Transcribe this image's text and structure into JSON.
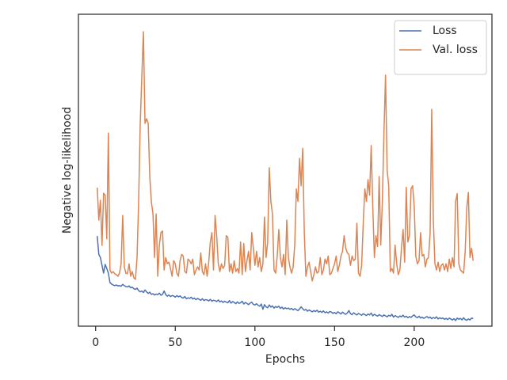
{
  "chart_data": {
    "type": "line",
    "xlabel": "Epochs",
    "ylabel": "Negative log-likelihood",
    "xlim": [
      -10.8,
      248.8
    ],
    "xticks": [
      0,
      50,
      100,
      150,
      200
    ],
    "ylim": [
      0,
      100
    ],
    "legend": "upper right",
    "grid": false,
    "x": [
      1,
      2,
      3,
      4,
      5,
      6,
      7,
      8,
      9,
      10,
      11,
      12,
      13,
      14,
      15,
      16,
      17,
      18,
      19,
      20,
      21,
      22,
      23,
      24,
      25,
      26,
      27,
      28,
      29,
      30,
      31,
      32,
      33,
      34,
      35,
      36,
      37,
      38,
      39,
      40,
      41,
      42,
      43,
      44,
      45,
      46,
      47,
      48,
      49,
      50,
      51,
      52,
      53,
      54,
      55,
      56,
      57,
      58,
      59,
      60,
      61,
      62,
      63,
      64,
      65,
      66,
      67,
      68,
      69,
      70,
      71,
      72,
      73,
      74,
      75,
      76,
      77,
      78,
      79,
      80,
      81,
      82,
      83,
      84,
      85,
      86,
      87,
      88,
      89,
      90,
      91,
      92,
      93,
      94,
      95,
      96,
      97,
      98,
      99,
      100,
      101,
      102,
      103,
      104,
      105,
      106,
      107,
      108,
      109,
      110,
      111,
      112,
      113,
      114,
      115,
      116,
      117,
      118,
      119,
      120,
      121,
      122,
      123,
      124,
      125,
      126,
      127,
      128,
      129,
      130,
      131,
      132,
      133,
      134,
      135,
      136,
      137,
      138,
      139,
      140,
      141,
      142,
      143,
      144,
      145,
      146,
      147,
      148,
      149,
      150,
      151,
      152,
      153,
      154,
      155,
      156,
      157,
      158,
      159,
      160,
      161,
      162,
      163,
      164,
      165,
      166,
      167,
      168,
      169,
      170,
      171,
      172,
      173,
      174,
      175,
      176,
      177,
      178,
      179,
      180,
      181,
      182,
      183,
      184,
      185,
      186,
      187,
      188,
      189,
      190,
      191,
      192,
      193,
      194,
      195,
      196,
      197,
      198,
      199,
      200,
      201,
      202,
      203,
      204,
      205,
      206,
      207,
      208,
      209,
      210,
      211,
      212,
      213,
      214,
      215,
      216,
      217,
      218,
      219,
      220,
      221,
      222,
      223,
      224,
      225,
      226,
      227,
      228,
      229,
      230,
      231,
      232,
      233,
      234,
      235,
      236,
      237
    ],
    "series": [
      {
        "name": "Loss",
        "color": "#4c72b0",
        "values": [
          28.9,
          23.0,
          22.0,
          19.5,
          17.0,
          19.8,
          18.5,
          17.0,
          14.0,
          13.5,
          13.2,
          13.0,
          13.2,
          12.9,
          13.0,
          12.8,
          13.4,
          13.0,
          12.7,
          12.6,
          12.9,
          12.3,
          12.5,
          12.0,
          11.8,
          12.2,
          11.4,
          11.0,
          11.3,
          10.8,
          11.6,
          11.0,
          10.5,
          10.9,
          10.2,
          10.4,
          10.0,
          10.3,
          10.1,
          10.6,
          9.9,
          10.2,
          11.3,
          10.1,
          9.6,
          10.0,
          9.5,
          9.8,
          9.7,
          9.3,
          9.8,
          9.4,
          9.7,
          9.2,
          9.0,
          9.5,
          8.8,
          9.1,
          8.9,
          9.3,
          8.7,
          9.0,
          8.5,
          8.9,
          8.6,
          8.3,
          8.8,
          8.2,
          8.5,
          8.4,
          8.1,
          8.6,
          8.0,
          8.3,
          8.2,
          7.9,
          8.4,
          7.8,
          8.1,
          7.6,
          8.0,
          7.7,
          7.5,
          8.2,
          7.4,
          7.9,
          7.6,
          7.2,
          7.8,
          7.3,
          7.5,
          8.0,
          7.1,
          7.6,
          7.3,
          6.9,
          7.4,
          7.7,
          7.0,
          6.8,
          7.2,
          6.7,
          6.4,
          7.1,
          5.4,
          6.9,
          6.2,
          5.9,
          6.8,
          6.1,
          6.5,
          5.8,
          6.3,
          6.0,
          6.4,
          5.7,
          6.1,
          5.5,
          5.9,
          5.6,
          5.8,
          5.4,
          5.7,
          5.2,
          5.6,
          5.3,
          5.0,
          5.5,
          6.2,
          5.6,
          5.1,
          5.4,
          4.8,
          5.2,
          4.9,
          4.6,
          5.0,
          4.7,
          5.1,
          4.5,
          4.8,
          4.4,
          4.9,
          4.3,
          4.6,
          4.2,
          4.7,
          4.5,
          4.1,
          4.4,
          4.0,
          4.6,
          4.3,
          3.9,
          4.5,
          4.1,
          3.8,
          4.2,
          5.0,
          4.0,
          3.7,
          4.3,
          3.9,
          3.6,
          4.1,
          3.8,
          3.5,
          4.0,
          3.7,
          3.4,
          3.9,
          3.6,
          4.2,
          3.3,
          3.8,
          3.5,
          3.2,
          3.7,
          3.4,
          3.1,
          3.6,
          3.3,
          3.0,
          3.5,
          3.2,
          3.8,
          2.9,
          3.4,
          3.1,
          2.8,
          3.3,
          3.0,
          3.5,
          2.9,
          3.2,
          2.7,
          3.1,
          2.8,
          3.3,
          3.6,
          3.0,
          2.7,
          3.2,
          2.6,
          2.9,
          2.5,
          2.8,
          3.1,
          2.6,
          2.9,
          2.4,
          2.8,
          2.5,
          3.0,
          2.3,
          2.7,
          2.4,
          2.6,
          2.2,
          2.5,
          2.1,
          2.6,
          2.3,
          2.0,
          2.4,
          1.8,
          2.6,
          2.2,
          2.5,
          2.0,
          2.7,
          2.1,
          1.9,
          2.3,
          2.0,
          2.6,
          2.4
        ]
      },
      {
        "name": "Val. loss",
        "color": "#dd8452",
        "values": [
          44.4,
          34.0,
          40.4,
          25.9,
          42.6,
          42.0,
          28.0,
          61.9,
          18.0,
          17.0,
          17.5,
          16.8,
          16.5,
          16.0,
          17.0,
          20.0,
          35.5,
          19.0,
          17.0,
          16.8,
          20.0,
          16.0,
          17.5,
          15.5,
          15.0,
          22.0,
          40.0,
          65.0,
          80.0,
          94.4,
          65.0,
          66.5,
          65.0,
          48.0,
          39.8,
          36.0,
          22.0,
          36.0,
          16.0,
          26.0,
          30.0,
          30.5,
          18.0,
          22.0,
          20.0,
          20.5,
          18.5,
          16.0,
          21.0,
          20.0,
          17.0,
          16.0,
          21.0,
          23.0,
          22.5,
          17.5,
          17.0,
          21.5,
          21.0,
          20.0,
          21.5,
          16.5,
          18.0,
          19.0,
          18.0,
          23.5,
          17.5,
          16.5,
          20.0,
          16.0,
          20.5,
          27.0,
          30.0,
          18.0,
          35.5,
          29.0,
          20.0,
          17.5,
          20.0,
          18.5,
          19.5,
          29.0,
          28.5,
          17.5,
          20.0,
          17.0,
          21.0,
          17.5,
          18.5,
          17.0,
          27.0,
          16.5,
          26.5,
          17.5,
          21.0,
          24.0,
          18.0,
          30.0,
          25.0,
          19.5,
          24.0,
          19.0,
          22.0,
          17.5,
          20.0,
          35.0,
          22.0,
          27.0,
          50.8,
          40.0,
          36.0,
          18.0,
          17.0,
          22.5,
          31.0,
          22.0,
          19.0,
          23.0,
          16.5,
          34.0,
          22.0,
          19.0,
          17.0,
          19.0,
          26.0,
          44.0,
          40.0,
          53.8,
          45.0,
          57.0,
          30.0,
          16.0,
          19.0,
          20.5,
          17.5,
          14.5,
          16.5,
          19.0,
          17.0,
          17.5,
          22.0,
          16.5,
          18.0,
          21.5,
          20.0,
          22.5,
          16.5,
          17.0,
          18.5,
          20.0,
          22.5,
          17.5,
          19.5,
          22.5,
          24.0,
          29.0,
          25.0,
          23.5,
          23.0,
          19.5,
          22.5,
          21.0,
          21.5,
          33.0,
          17.0,
          16.0,
          19.5,
          33.0,
          44.0,
          40.0,
          47.0,
          42.0,
          57.9,
          38.0,
          22.0,
          29.0,
          25.5,
          48.0,
          26.0,
          40.0,
          62.0,
          80.5,
          50.0,
          45.0,
          17.5,
          18.5,
          17.0,
          26.0,
          20.0,
          16.5,
          18.0,
          25.0,
          31.0,
          20.5,
          44.5,
          27.0,
          29.0,
          44.0,
          45.0,
          38.5,
          22.5,
          20.0,
          21.0,
          30.0,
          22.5,
          23.0,
          19.0,
          21.5,
          22.0,
          30.0,
          69.5,
          34.0,
          20.0,
          18.0,
          20.5,
          17.5,
          19.5,
          20.0,
          18.0,
          20.0,
          17.5,
          21.5,
          18.5,
          22.0,
          19.0,
          40.0,
          42.5,
          20.0,
          18.0,
          17.5,
          17.0,
          24.0,
          38.0,
          42.9,
          22.0,
          25.0,
          21.0
        ]
      }
    ]
  }
}
